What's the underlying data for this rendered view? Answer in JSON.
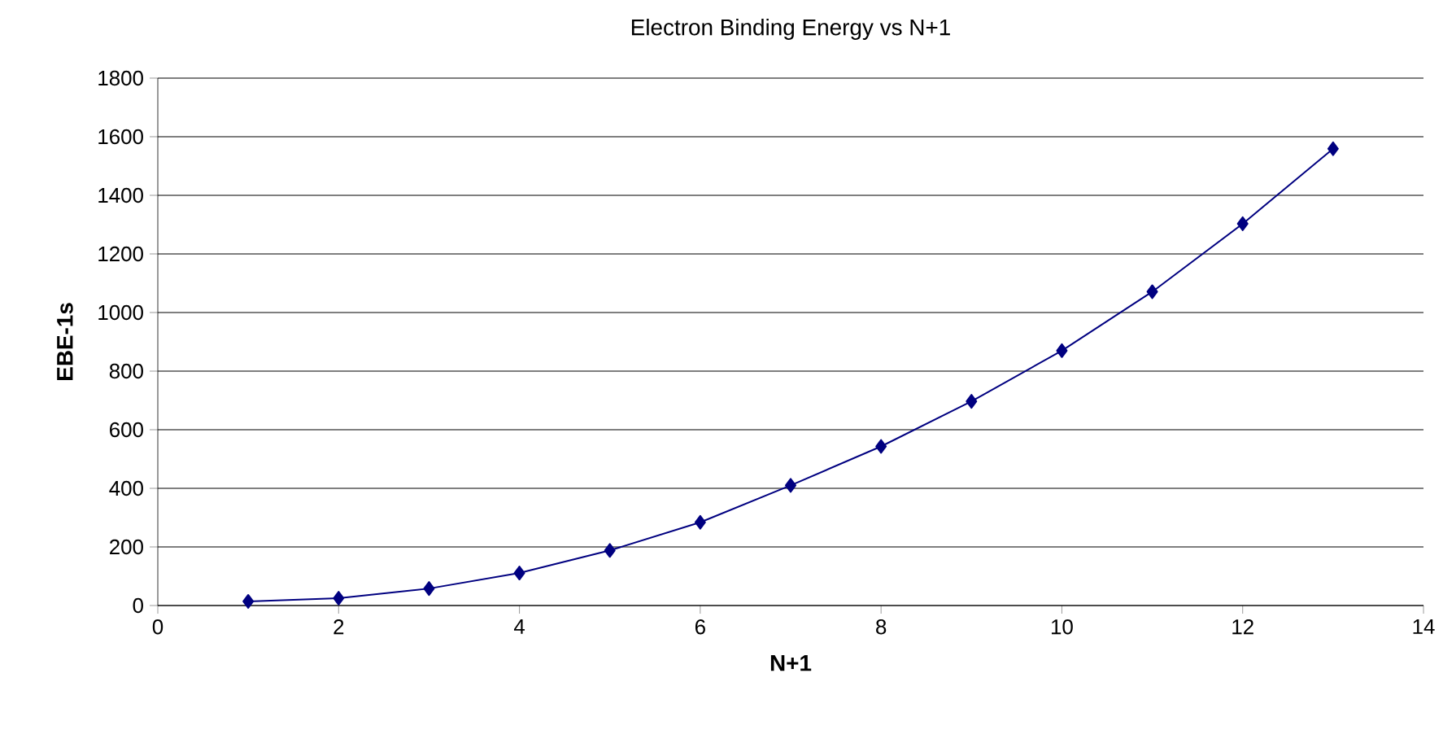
{
  "chart_data": {
    "type": "line",
    "title": "Electron Binding Energy vs N+1",
    "xlabel": "N+1",
    "ylabel": "EBE-1s",
    "x": [
      1,
      2,
      3,
      4,
      5,
      6,
      7,
      8,
      9,
      10,
      11,
      12,
      13
    ],
    "series": [
      {
        "color": "#000080",
        "values": [
          14,
          25,
          58,
          111,
          188,
          284,
          410,
          543,
          697,
          870,
          1071,
          1303,
          1559
        ]
      }
    ],
    "xlim": [
      0,
      14
    ],
    "xticks": [
      0,
      2,
      4,
      6,
      8,
      10,
      12,
      14
    ],
    "ylim": [
      0,
      1800
    ],
    "yticks": [
      0,
      200,
      400,
      600,
      800,
      1000,
      1200,
      1400,
      1600,
      1800
    ],
    "grid": "y",
    "marker": "diamond",
    "line_style": "solid"
  }
}
